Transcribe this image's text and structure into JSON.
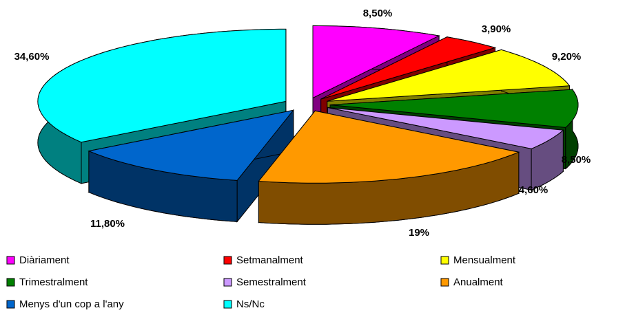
{
  "chart_data": {
    "type": "pie",
    "categories": [
      "Diàriament",
      "Setmanalment",
      "Mensualment",
      "Trimestralment",
      "Semestralment",
      "Anualment",
      "Menys d'un cop a l'any",
      "Ns/Nc"
    ],
    "values": [
      8.5,
      3.9,
      9.2,
      8.5,
      4.6,
      19,
      11.8,
      34.6
    ],
    "value_labels": [
      "8,50%",
      "3,90%",
      "9,20%",
      "8,50%",
      "4,60%",
      "19%",
      "11,80%",
      "34,60%"
    ],
    "colors": [
      "#ff00ff",
      "#ff0000",
      "#ffff00",
      "#008000",
      "#cc99ff",
      "#ff9900",
      "#0066cc",
      "#00ffff"
    ]
  }
}
